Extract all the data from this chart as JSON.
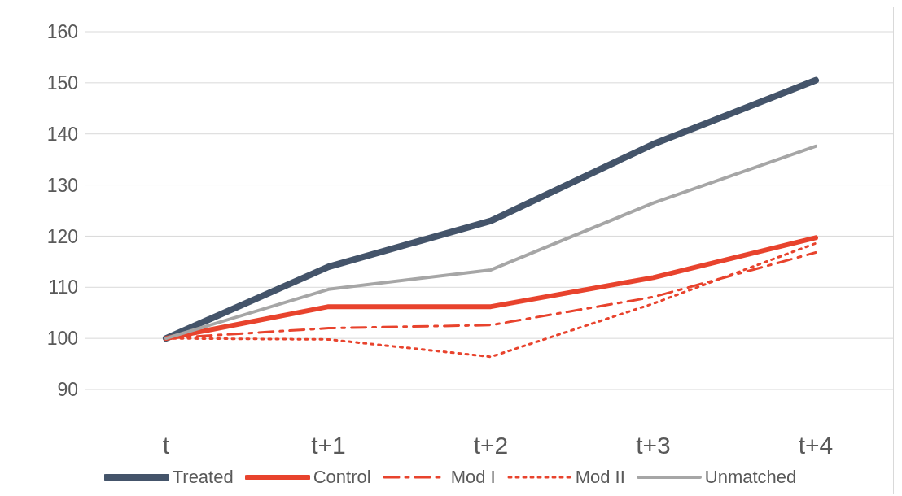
{
  "chart_data": {
    "type": "line",
    "categories": [
      "t",
      "t+1",
      "t+2",
      "t+3",
      "t+4"
    ],
    "series": [
      {
        "name": "Treated",
        "color": "#44546a",
        "line_style": "solid",
        "values": [
          100,
          114,
          123,
          138,
          150.5
        ]
      },
      {
        "name": "Control",
        "color": "#e8432d",
        "line_style": "solid",
        "values": [
          100,
          106.2,
          106.2,
          111.9,
          119.7
        ]
      },
      {
        "name": "Mod I",
        "color": "#e8432d",
        "line_style": "dashed",
        "values": [
          100,
          102,
          102.6,
          108.1,
          116.8
        ]
      },
      {
        "name": "Mod II",
        "color": "#e8432d",
        "line_style": "dotted",
        "values": [
          100,
          99.8,
          96.4,
          106.8,
          118.6
        ]
      },
      {
        "name": "Unmatched",
        "color": "#a6a6a6",
        "line_style": "solid",
        "values": [
          100,
          109.6,
          113.4,
          126.5,
          137.6
        ]
      }
    ],
    "ylim": [
      90,
      160
    ],
    "yticks": [
      90,
      100,
      110,
      120,
      130,
      140,
      150,
      160
    ],
    "grid": "y",
    "legend": "bottom",
    "marker": "none"
  }
}
